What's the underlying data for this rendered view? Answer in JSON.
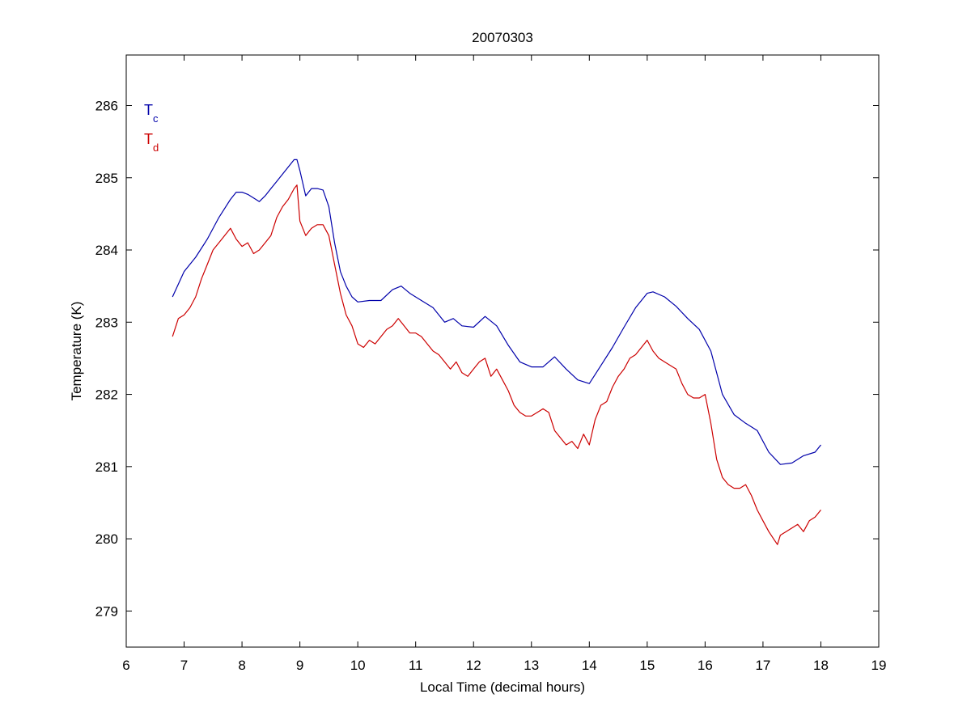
{
  "chart_data": {
    "type": "line",
    "title": "20070303",
    "xlabel": "Local Time (decimal hours)",
    "ylabel": "Temperature (K)",
    "xlim": [
      6,
      19
    ],
    "ylim": [
      278.5,
      286.7
    ],
    "xticks": [
      6,
      7,
      8,
      9,
      10,
      11,
      12,
      13,
      14,
      15,
      16,
      17,
      18,
      19
    ],
    "yticks": [
      279,
      280,
      281,
      282,
      283,
      284,
      285,
      286
    ],
    "grid": false,
    "legend_placement": "top-left",
    "series": [
      {
        "name": "T",
        "name_subscript": "c",
        "color": "#0000aa",
        "x": [
          6.8,
          7.0,
          7.2,
          7.4,
          7.6,
          7.8,
          7.9,
          8.0,
          8.1,
          8.2,
          8.3,
          8.4,
          8.5,
          8.6,
          8.7,
          8.8,
          8.9,
          8.95,
          9.0,
          9.1,
          9.2,
          9.3,
          9.4,
          9.5,
          9.6,
          9.7,
          9.8,
          9.9,
          10.0,
          10.2,
          10.4,
          10.6,
          10.75,
          10.9,
          11.1,
          11.3,
          11.5,
          11.65,
          11.8,
          12.0,
          12.2,
          12.4,
          12.6,
          12.8,
          13.0,
          13.2,
          13.4,
          13.6,
          13.8,
          14.0,
          14.2,
          14.4,
          14.6,
          14.8,
          15.0,
          15.1,
          15.3,
          15.5,
          15.7,
          15.9,
          16.1,
          16.3,
          16.5,
          16.7,
          16.9,
          17.1,
          17.3,
          17.5,
          17.7,
          17.9,
          18.0
        ],
        "y": [
          283.35,
          283.7,
          283.9,
          284.15,
          284.45,
          284.7,
          284.8,
          284.8,
          284.77,
          284.72,
          284.67,
          284.75,
          284.85,
          284.95,
          285.05,
          285.15,
          285.25,
          285.25,
          285.1,
          284.75,
          284.85,
          284.85,
          284.83,
          284.6,
          284.1,
          283.7,
          283.5,
          283.35,
          283.28,
          283.3,
          283.3,
          283.45,
          283.5,
          283.4,
          283.3,
          283.2,
          283.0,
          283.05,
          282.95,
          282.93,
          283.08,
          282.95,
          282.68,
          282.45,
          282.38,
          282.38,
          282.52,
          282.35,
          282.2,
          282.15,
          282.4,
          282.65,
          282.93,
          283.2,
          283.4,
          283.42,
          283.35,
          283.22,
          283.05,
          282.9,
          282.6,
          282.0,
          281.72,
          281.6,
          281.5,
          281.2,
          281.03,
          281.05,
          281.15,
          281.2,
          281.3
        ]
      },
      {
        "name": "T",
        "name_subscript": "d",
        "color": "#cc0000",
        "x": [
          6.8,
          6.9,
          7.0,
          7.1,
          7.2,
          7.3,
          7.4,
          7.5,
          7.6,
          7.7,
          7.8,
          7.9,
          8.0,
          8.1,
          8.2,
          8.3,
          8.4,
          8.5,
          8.6,
          8.7,
          8.8,
          8.9,
          8.95,
          9.0,
          9.1,
          9.2,
          9.3,
          9.4,
          9.5,
          9.6,
          9.7,
          9.8,
          9.9,
          10.0,
          10.1,
          10.2,
          10.3,
          10.4,
          10.5,
          10.6,
          10.7,
          10.8,
          10.9,
          11.0,
          11.1,
          11.2,
          11.3,
          11.4,
          11.5,
          11.6,
          11.7,
          11.8,
          11.9,
          12.0,
          12.1,
          12.2,
          12.3,
          12.4,
          12.5,
          12.6,
          12.7,
          12.8,
          12.9,
          13.0,
          13.1,
          13.2,
          13.3,
          13.4,
          13.5,
          13.6,
          13.7,
          13.8,
          13.9,
          14.0,
          14.1,
          14.2,
          14.3,
          14.4,
          14.5,
          14.6,
          14.7,
          14.8,
          14.9,
          15.0,
          15.1,
          15.2,
          15.3,
          15.4,
          15.5,
          15.6,
          15.7,
          15.8,
          15.9,
          16.0,
          16.1,
          16.2,
          16.3,
          16.4,
          16.5,
          16.6,
          16.7,
          16.8,
          16.9,
          17.0,
          17.1,
          17.2,
          17.25,
          17.3,
          17.4,
          17.5,
          17.6,
          17.7,
          17.8,
          17.9,
          18.0
        ],
        "y": [
          282.8,
          283.05,
          283.1,
          283.2,
          283.35,
          283.6,
          283.8,
          284.0,
          284.1,
          284.2,
          284.3,
          284.15,
          284.05,
          284.1,
          283.95,
          284.0,
          284.1,
          284.2,
          284.45,
          284.6,
          284.7,
          284.85,
          284.9,
          284.4,
          284.2,
          284.3,
          284.35,
          284.35,
          284.2,
          283.8,
          283.4,
          283.1,
          282.95,
          282.7,
          282.65,
          282.75,
          282.7,
          282.8,
          282.9,
          282.95,
          283.05,
          282.95,
          282.85,
          282.85,
          282.8,
          282.7,
          282.6,
          282.55,
          282.45,
          282.35,
          282.45,
          282.3,
          282.25,
          282.35,
          282.45,
          282.5,
          282.25,
          282.35,
          282.2,
          282.05,
          281.85,
          281.75,
          281.7,
          281.7,
          281.75,
          281.8,
          281.75,
          281.5,
          281.4,
          281.3,
          281.35,
          281.25,
          281.45,
          281.3,
          281.65,
          281.85,
          281.9,
          282.1,
          282.25,
          282.35,
          282.5,
          282.55,
          282.65,
          282.75,
          282.6,
          282.5,
          282.45,
          282.4,
          282.35,
          282.15,
          282.0,
          281.95,
          281.95,
          282.0,
          281.6,
          281.1,
          280.85,
          280.75,
          280.7,
          280.7,
          280.75,
          280.6,
          280.4,
          280.25,
          280.1,
          279.98,
          279.92,
          280.05,
          280.1,
          280.15,
          280.2,
          280.1,
          280.25,
          280.3,
          280.4
        ]
      }
    ]
  }
}
